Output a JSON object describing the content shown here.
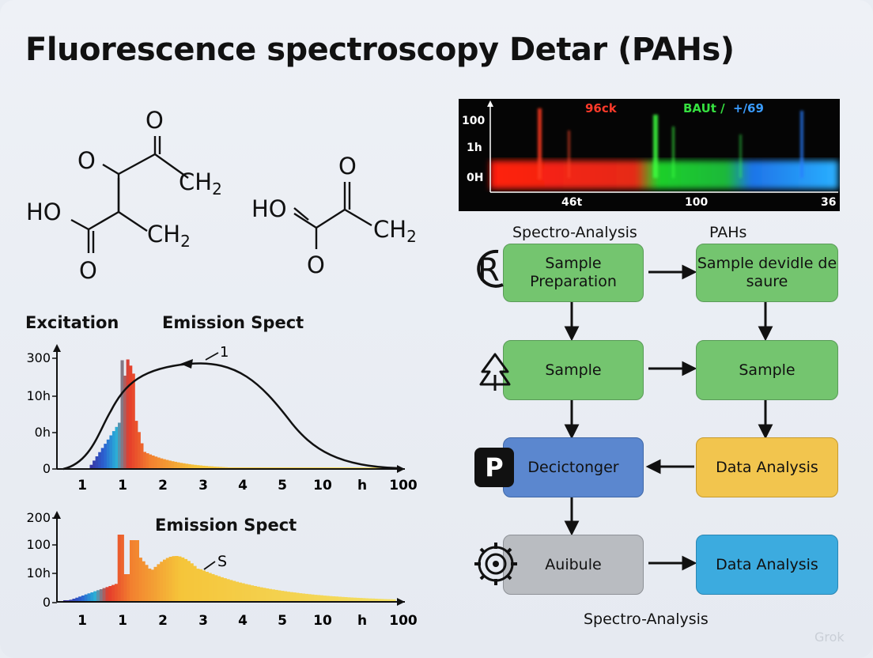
{
  "title": "Fluorescence spectroscopy Detar (PAHs)",
  "molecules": {
    "m1": {
      "o_top": "O",
      "o_left": "O",
      "ch2_top": "CH2",
      "ho": "HO",
      "ch2_bottom": "CH2",
      "o_bottom": "O"
    },
    "m2": {
      "o_top": "O",
      "ho": "HO",
      "ch2": "CH2",
      "o_bottom": "O"
    }
  },
  "chart_top": {
    "left_label": "Excitation",
    "title": "Emission Spect",
    "annotation": "1",
    "y_ticks": [
      "300",
      "10h",
      "0h",
      "0"
    ],
    "x_ticks": [
      "1",
      "1",
      "2",
      "3",
      "4",
      "5",
      "10",
      "h",
      "100"
    ]
  },
  "chart_bottom": {
    "title": "Emission Spect",
    "annotation": "S",
    "y_ticks": [
      "200",
      "100",
      "10h",
      "0"
    ],
    "x_ticks": [
      "1",
      "1",
      "2",
      "3",
      "4",
      "5",
      "10",
      "h",
      "100"
    ]
  },
  "spectrogram": {
    "label_red": "96ck",
    "label_green": "BAUt / ",
    "label_blue": "+/69",
    "y_ticks": [
      "100",
      "1h",
      "0H"
    ],
    "x_ticks": [
      "46t",
      "100",
      "36"
    ]
  },
  "flow": {
    "header_left": "Spectro-Analysis",
    "header_right": "PAHs",
    "footer": "Spectro-Analysis",
    "boxes": {
      "b1": "Sample Preparation",
      "b2": "Sample devidle de saure",
      "b3": "Sample",
      "b4": "Sample",
      "b5": "Decictonger",
      "b6": "Data Analysis",
      "b7": "Auibule",
      "b8": "Data Analysis"
    },
    "icons": {
      "p_icon": "P",
      "r_icon": "R"
    }
  },
  "watermark": "Grok",
  "colors": {
    "green": "#74c56f",
    "blue": "#5b87cf",
    "yellow": "#f2c54e",
    "gray": "#b9bcc1",
    "cyan": "#3cabdf"
  }
}
